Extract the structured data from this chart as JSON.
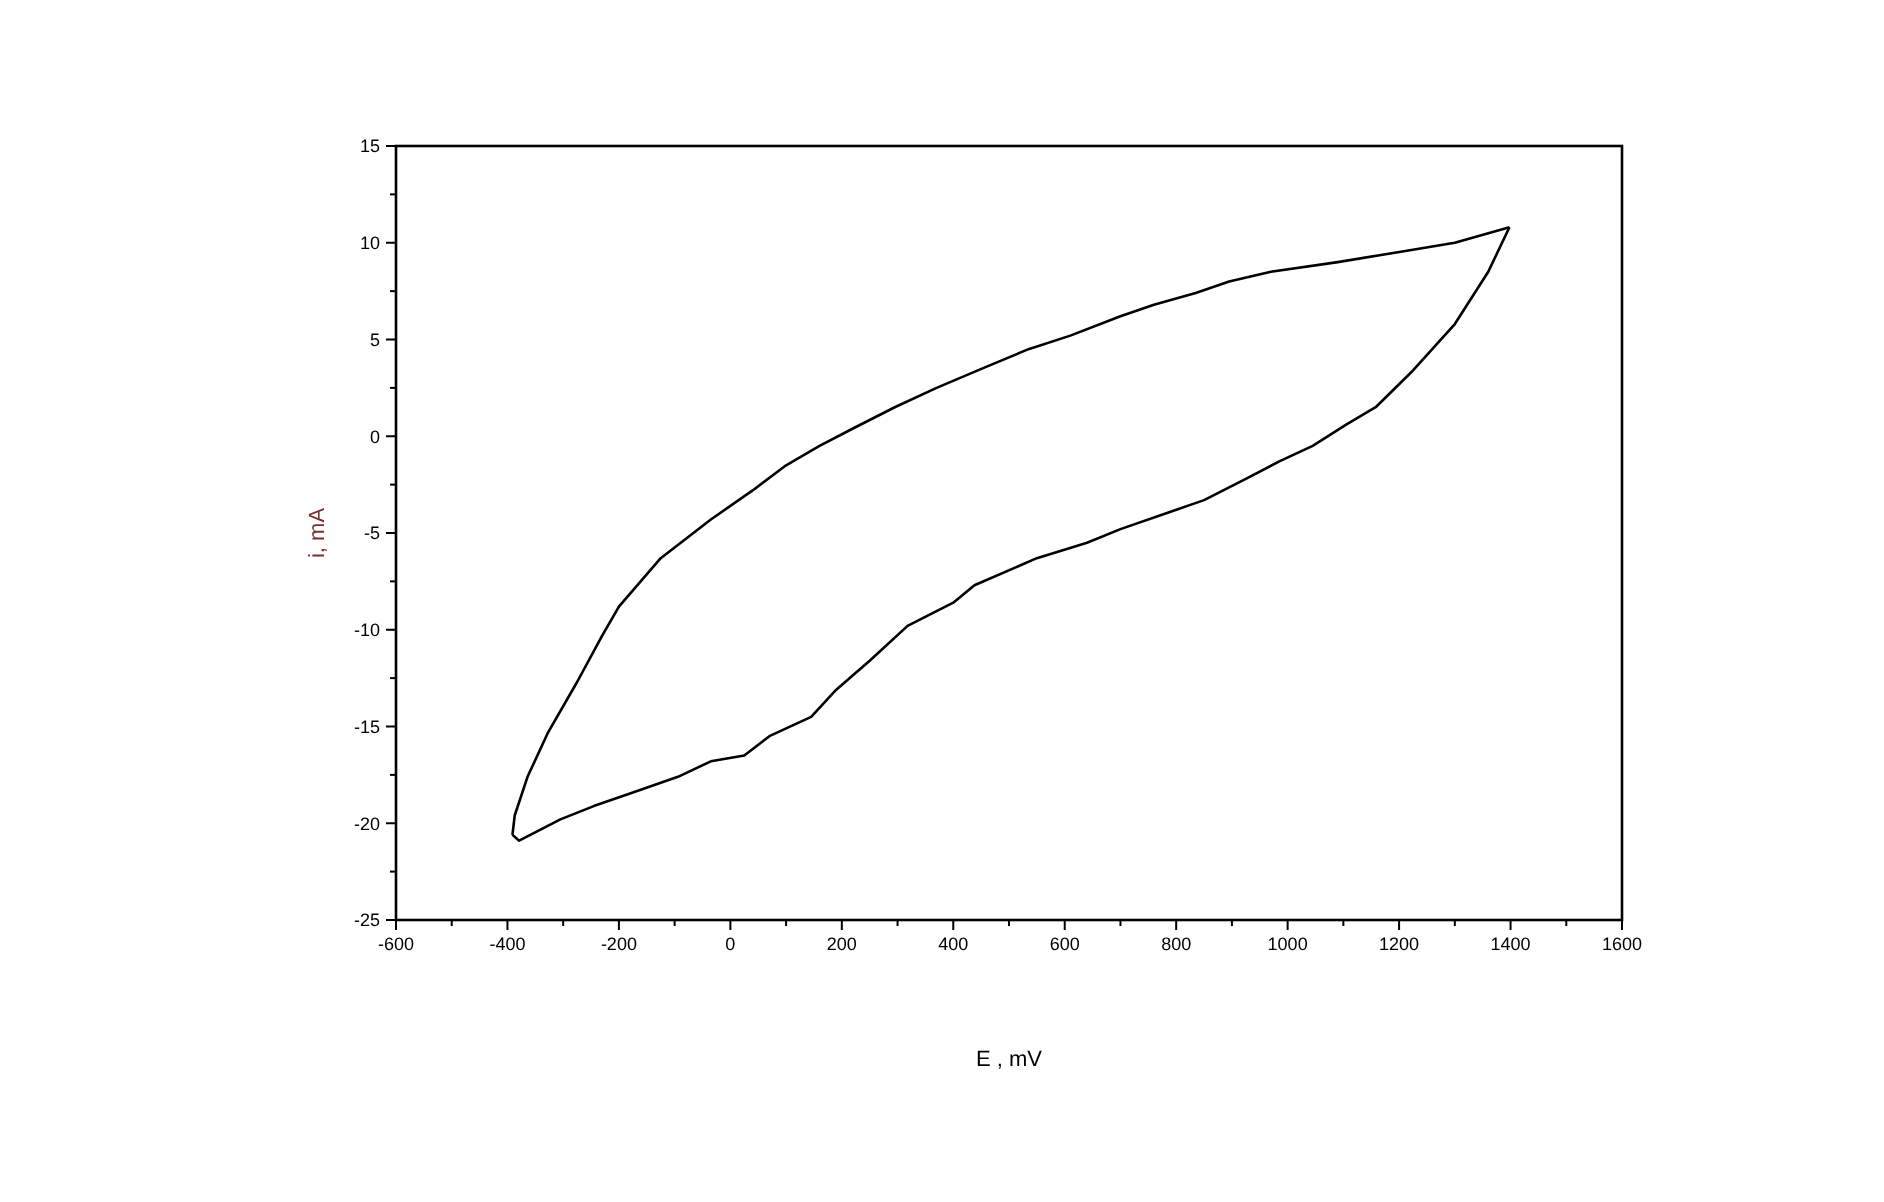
{
  "chart_data": {
    "type": "line",
    "xlabel": "E , mV",
    "ylabel": "i, mA",
    "xlim": [
      -600,
      1600
    ],
    "ylim": [
      -25,
      15
    ],
    "xticks": [
      -600,
      {
        "value": -500,
        "label": null
      },
      -400,
      {
        "value": -300,
        "label": null
      },
      -200,
      {
        "value": -100,
        "label": null
      },
      0,
      {
        "value": 100,
        "label": null
      },
      200,
      {
        "value": 300,
        "label": null
      },
      400,
      {
        "value": 500,
        "label": null
      },
      600,
      {
        "value": 700,
        "label": null
      },
      800,
      {
        "value": 900,
        "label": null
      },
      1000,
      {
        "value": 1100,
        "label": null
      },
      1200,
      {
        "value": 1300,
        "label": null
      },
      1400,
      {
        "value": 1500,
        "label": null
      },
      1600
    ],
    "yticks": [
      -25,
      {
        "value": -22.5,
        "label": null
      },
      -20,
      {
        "value": -17.5,
        "label": null
      },
      -15,
      {
        "value": -12.5,
        "label": null
      },
      -10,
      {
        "value": -7.5,
        "label": null
      },
      -5,
      {
        "value": -2.5,
        "label": null
      },
      0,
      {
        "value": 2.5,
        "label": null
      },
      5,
      {
        "value": 7.5,
        "label": null
      },
      10,
      {
        "value": 12.5,
        "label": null
      },
      15
    ],
    "grid": false,
    "marker": "none",
    "line_style": "solid",
    "series": [
      {
        "color": "#000000",
        "x": [
          -391,
          -387,
          -364,
          -327,
          -275,
          -230,
          -200,
          -125,
          -35,
          40,
          100,
          160,
          220,
          295,
          370,
          460,
          535,
          610,
          700,
          760,
          835,
          895,
          970,
          1090,
          1195,
          1300,
          1398
        ],
        "values": [
          -20.6,
          -19.6,
          -17.6,
          -15.3,
          -12.7,
          -10.3,
          -8.8,
          -6.3,
          -4.3,
          -2.8,
          -1.5,
          -0.5,
          0.4,
          1.5,
          2.5,
          3.6,
          4.5,
          5.2,
          6.2,
          6.8,
          7.4,
          8.0,
          8.5,
          9.0,
          9.5,
          10.0,
          10.8
        ]
      },
      {
        "color": "#000000",
        "x": [
          -391,
          -379,
          -305,
          -244,
          -184,
          -94,
          -35,
          25,
          70,
          145,
          190,
          250,
          318,
          400,
          438,
          550,
          640,
          700,
          790,
          850,
          925,
          985,
          1045,
          1105,
          1158,
          1225,
          1300,
          1360,
          1398
        ],
        "values": [
          -20.6,
          -20.9,
          -19.8,
          -19.1,
          -18.5,
          -17.6,
          -16.8,
          -16.5,
          -15.5,
          -14.5,
          -13.1,
          -11.6,
          -9.8,
          -8.6,
          -7.7,
          -6.3,
          -5.5,
          -4.8,
          -3.9,
          -3.3,
          -2.2,
          -1.3,
          -0.5,
          0.6,
          1.5,
          3.4,
          5.8,
          8.5,
          10.8
        ]
      }
    ]
  }
}
